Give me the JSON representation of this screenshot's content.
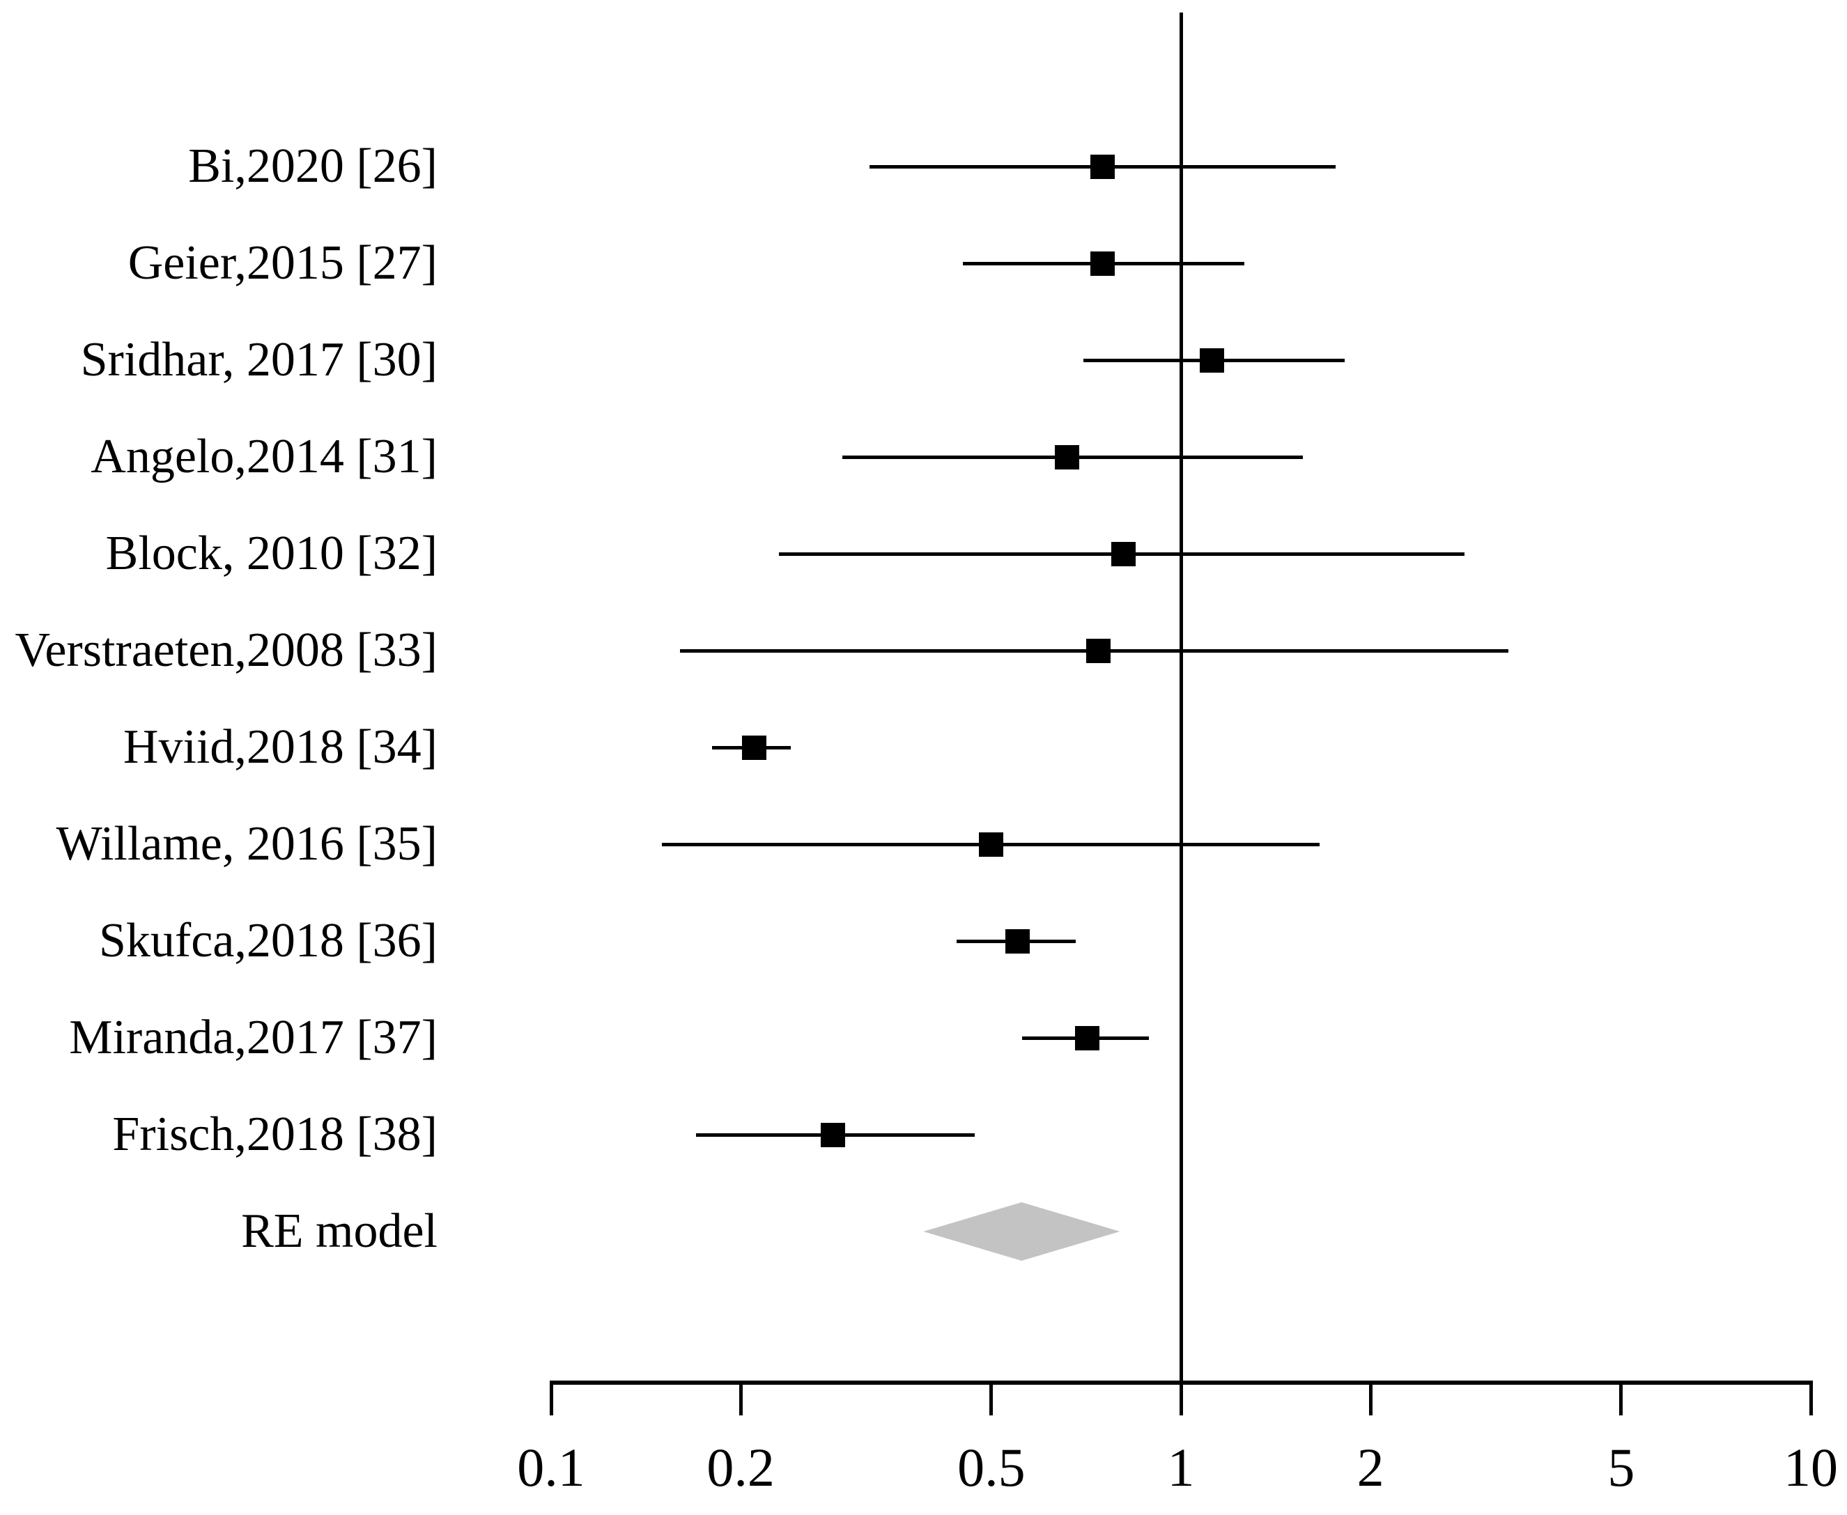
{
  "figure": {
    "background": "#ffffff",
    "marker_color": "#000000",
    "line_color": "#000000",
    "text_color": "#000000",
    "diamond_color": "#c3c3c3"
  },
  "chart_data": {
    "type": "forest",
    "title": "",
    "xlabel": "",
    "x_axis": {
      "scale": "log10",
      "range": [
        0.1,
        10
      ],
      "tick_values": [
        0.1,
        0.2,
        0.5,
        1,
        2,
        5,
        10
      ],
      "tick_labels": [
        "0.1",
        "0.2",
        "0.5",
        "1",
        "2",
        "5",
        "10"
      ],
      "reference_line_value": 1
    },
    "legend": "none",
    "grid": false,
    "studies": [
      {
        "label": "Bi,2020 [26]",
        "estimate": 0.75,
        "ci_lower": 0.32,
        "ci_upper": 1.76
      },
      {
        "label": "Geier,2015 [27]",
        "estimate": 0.75,
        "ci_lower": 0.45,
        "ci_upper": 1.26
      },
      {
        "label": "Sridhar, 2017 [30]",
        "estimate": 1.12,
        "ci_lower": 0.7,
        "ci_upper": 1.82
      },
      {
        "label": "Angelo,2014 [31]",
        "estimate": 0.66,
        "ci_lower": 0.29,
        "ci_upper": 1.56
      },
      {
        "label": "Block, 2010 [32]",
        "estimate": 0.81,
        "ci_lower": 0.23,
        "ci_upper": 2.82
      },
      {
        "label": "Verstraeten,2008 [33]",
        "estimate": 0.74,
        "ci_lower": 0.16,
        "ci_upper": 3.31
      },
      {
        "label": "Hviid,2018 [34]",
        "estimate": 0.21,
        "ci_lower": 0.18,
        "ci_upper": 0.24
      },
      {
        "label": "Willame, 2016 [35]",
        "estimate": 0.5,
        "ci_lower": 0.15,
        "ci_upper": 1.66
      },
      {
        "label": "Skufca,2018 [36]",
        "estimate": 0.55,
        "ci_lower": 0.44,
        "ci_upper": 0.68
      },
      {
        "label": "Miranda,2017 [37]",
        "estimate": 0.71,
        "ci_lower": 0.56,
        "ci_upper": 0.89
      },
      {
        "label": "Frisch,2018 [38]",
        "estimate": 0.28,
        "ci_lower": 0.17,
        "ci_upper": 0.47
      }
    ],
    "summary": {
      "label": "RE model",
      "estimate": 0.56,
      "ci_lower": 0.39,
      "ci_upper": 0.8,
      "marker": "diamond"
    }
  }
}
